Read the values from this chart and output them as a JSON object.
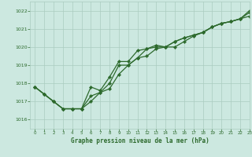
{
  "title": "Graphe pression niveau de la mer (hPa)",
  "background_color": "#cce8e0",
  "grid_color": "#aaccbf",
  "line_color": "#2d6a2d",
  "xlim": [
    -0.5,
    23
  ],
  "ylim": [
    1015.5,
    1022.5
  ],
  "yticks": [
    1016,
    1017,
    1018,
    1019,
    1020,
    1021,
    1022
  ],
  "xticks": [
    0,
    1,
    2,
    3,
    4,
    5,
    6,
    7,
    8,
    9,
    10,
    11,
    12,
    13,
    14,
    15,
    16,
    17,
    18,
    19,
    20,
    21,
    22,
    23
  ],
  "series1": [
    1017.8,
    1017.4,
    1017.0,
    1016.6,
    1016.6,
    1016.6,
    1017.0,
    1017.5,
    1017.7,
    1018.5,
    1019.0,
    1019.4,
    1019.5,
    1019.9,
    1020.0,
    1020.0,
    1020.3,
    1020.6,
    1020.8,
    1021.1,
    1021.3,
    1021.4,
    1021.55,
    1021.7
  ],
  "series2": [
    1017.8,
    1017.4,
    1017.0,
    1016.6,
    1016.6,
    1016.6,
    1017.8,
    1017.6,
    1018.35,
    1019.2,
    1019.2,
    1019.8,
    1019.9,
    1020.0,
    1020.0,
    1020.3,
    1020.5,
    1020.65,
    1020.8,
    1021.1,
    1021.3,
    1021.4,
    1021.55,
    1021.9
  ],
  "series3": [
    1017.8,
    1017.4,
    1017.0,
    1016.6,
    1016.6,
    1016.6,
    1017.3,
    1017.5,
    1018.0,
    1019.0,
    1019.0,
    1019.4,
    1019.9,
    1020.1,
    1020.0,
    1020.3,
    1020.5,
    1020.65,
    1020.8,
    1021.1,
    1021.3,
    1021.4,
    1021.55,
    1022.0
  ]
}
